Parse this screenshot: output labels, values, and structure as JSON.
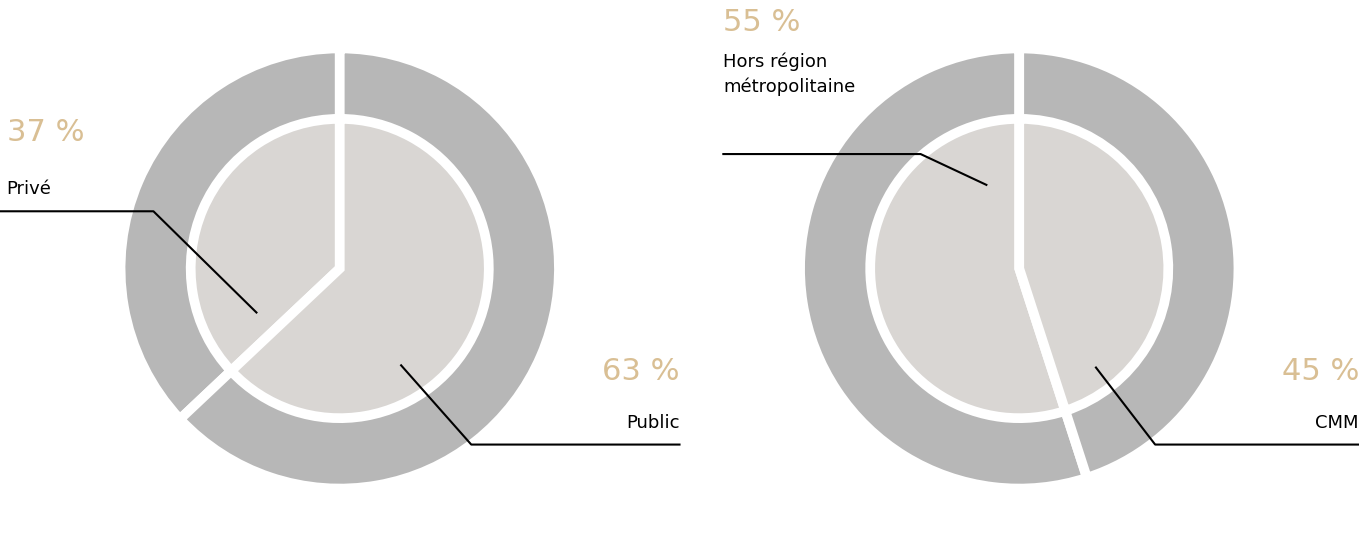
{
  "chart_data": [
    {
      "type": "pie",
      "categories": [
        "Privé",
        "Public"
      ],
      "values": [
        37,
        63
      ],
      "value_labels": [
        "37 %",
        "63 %"
      ],
      "colors": [
        "#b7b7b7",
        "#b7b7b7"
      ]
    },
    {
      "type": "pie",
      "categories": [
        "Hors région métropolitaine",
        "CMM"
      ],
      "values": [
        55,
        45
      ],
      "value_labels": [
        "55 %",
        "45 %"
      ],
      "colors": [
        "#b7b7b7",
        "#b7b7b7"
      ]
    }
  ]
}
